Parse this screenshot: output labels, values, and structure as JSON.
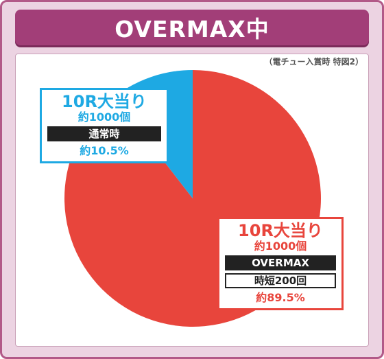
{
  "title": "OVERMAX中",
  "note": "（電チュー入賞時 特図2）",
  "colors": {
    "blue": "#1ea9e3",
    "red": "#e8453c",
    "frame": "#b25988",
    "title_bg": "#a23e78"
  },
  "chart_data": {
    "type": "pie",
    "title": "OVERMAX中",
    "slices": [
      {
        "label": "通常時",
        "value": 10.5,
        "color": "#1ea9e3"
      },
      {
        "label": "OVERMAX",
        "value": 89.5,
        "color": "#e8453c"
      }
    ]
  },
  "labels": {
    "blue": {
      "win": "10R大当り",
      "balls": "約1000個",
      "mode": "通常時",
      "percent": "約10.5%"
    },
    "red": {
      "win": "10R大当り",
      "balls": "約1000個",
      "mode": "OVERMAX",
      "sub": "時短200回",
      "percent": "約89.5%"
    }
  }
}
